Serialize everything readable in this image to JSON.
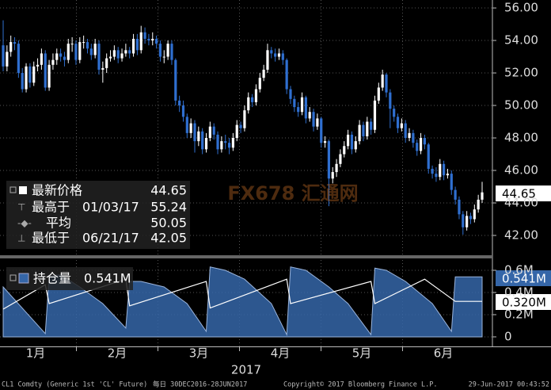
{
  "chart_data": {
    "type": "candlestick",
    "up_color": "#ffffff",
    "down_color": "#2f6fd0",
    "ylim": [
      40.78,
      56.49
    ],
    "yticks": [
      {
        "value": 56,
        "label": "56.00"
      },
      {
        "value": 54,
        "label": "54.00"
      },
      {
        "value": 52,
        "label": "52.00"
      },
      {
        "value": 50,
        "label": "50.00"
      },
      {
        "value": 48,
        "label": "48.00"
      },
      {
        "value": 46,
        "label": "46.00"
      },
      {
        "value": 44,
        "label": "44.00"
      },
      {
        "value": 42,
        "label": "42.00"
      }
    ],
    "grid": true,
    "months": [
      "1月",
      "2月",
      "3月",
      "4月",
      "5月",
      "6月"
    ],
    "year": "2017",
    "candles": [
      [
        53.7,
        55.24,
        52.1,
        52.4
      ],
      [
        52.4,
        53.7,
        52.1,
        53.3
      ],
      [
        53.3,
        54.3,
        53.0,
        53.9
      ],
      [
        53.9,
        54.2,
        53.4,
        53.8
      ],
      [
        53.8,
        54.0,
        51.7,
        52.0
      ],
      [
        52.0,
        52.3,
        50.8,
        51.0
      ],
      [
        51.0,
        52.6,
        50.8,
        52.4
      ],
      [
        52.4,
        52.6,
        51.1,
        51.4
      ],
      [
        51.4,
        52.7,
        51.2,
        52.4
      ],
      [
        52.4,
        52.9,
        52.1,
        52.5
      ],
      [
        52.5,
        53.5,
        52.2,
        53.2
      ],
      [
        53.2,
        53.4,
        50.9,
        51.1
      ],
      [
        51.1,
        52.8,
        50.9,
        52.5
      ],
      [
        52.5,
        53.2,
        52.2,
        52.8
      ],
      [
        52.8,
        53.5,
        52.5,
        53.2
      ],
      [
        53.2,
        53.5,
        52.7,
        53.0
      ],
      [
        53.0,
        53.3,
        52.4,
        52.8
      ],
      [
        52.8,
        54.1,
        52.6,
        53.8
      ],
      [
        53.8,
        54.2,
        53.3,
        53.8
      ],
      [
        53.8,
        54.0,
        52.5,
        52.8
      ],
      [
        52.8,
        54.2,
        52.6,
        53.9
      ],
      [
        53.9,
        54.3,
        53.5,
        53.9
      ],
      [
        53.9,
        54.1,
        53.2,
        53.5
      ],
      [
        53.5,
        53.8,
        52.8,
        53.1
      ],
      [
        53.1,
        54.1,
        52.9,
        53.8
      ],
      [
        53.8,
        54.0,
        51.9,
        52.2
      ],
      [
        52.2,
        52.7,
        51.4,
        52.3
      ],
      [
        52.3,
        53.2,
        52.0,
        52.9
      ],
      [
        52.9,
        53.4,
        52.7,
        53.0
      ],
      [
        53.0,
        53.7,
        52.8,
        53.4
      ],
      [
        53.4,
        53.6,
        52.6,
        52.9
      ],
      [
        52.9,
        53.5,
        52.7,
        53.2
      ],
      [
        53.2,
        53.8,
        53.0,
        53.4
      ],
      [
        53.4,
        53.6,
        52.9,
        53.2
      ],
      [
        53.2,
        54.4,
        53.0,
        54.1
      ],
      [
        54.1,
        54.4,
        53.1,
        53.4
      ],
      [
        53.4,
        54.9,
        53.2,
        54.5
      ],
      [
        54.5,
        54.8,
        53.8,
        54.1
      ],
      [
        54.1,
        54.4,
        53.7,
        54.0
      ],
      [
        54.0,
        54.5,
        53.7,
        54.1
      ],
      [
        54.1,
        54.3,
        53.5,
        53.8
      ],
      [
        53.8,
        54.0,
        52.7,
        53.0
      ],
      [
        53.0,
        53.4,
        52.6,
        53.0
      ],
      [
        53.0,
        54.0,
        52.8,
        53.8
      ],
      [
        53.8,
        54.0,
        52.5,
        52.8
      ],
      [
        52.8,
        52.9,
        50.0,
        50.3
      ],
      [
        50.3,
        50.6,
        49.6,
        50.0
      ],
      [
        50.0,
        50.3,
        49.0,
        49.3
      ],
      [
        49.3,
        49.5,
        48.0,
        48.3
      ],
      [
        48.3,
        49.2,
        48.0,
        48.9
      ],
      [
        48.9,
        49.1,
        47.1,
        47.8
      ],
      [
        47.8,
        48.7,
        47.5,
        48.4
      ],
      [
        48.4,
        48.6,
        47.0,
        47.3
      ],
      [
        47.3,
        48.3,
        47.1,
        48.0
      ],
      [
        48.0,
        49.0,
        47.8,
        48.7
      ],
      [
        48.7,
        48.9,
        47.9,
        48.2
      ],
      [
        48.2,
        48.4,
        47.0,
        47.3
      ],
      [
        47.3,
        48.1,
        47.1,
        47.8
      ],
      [
        47.8,
        48.2,
        47.3,
        47.7
      ],
      [
        47.7,
        48.0,
        47.0,
        47.4
      ],
      [
        47.4,
        48.3,
        47.2,
        48.0
      ],
      [
        48.0,
        49.1,
        47.8,
        48.8
      ],
      [
        48.8,
        49.0,
        48.3,
        48.6
      ],
      [
        48.6,
        50.0,
        48.4,
        49.7
      ],
      [
        49.7,
        50.8,
        49.5,
        50.5
      ],
      [
        50.5,
        50.7,
        49.9,
        50.2
      ],
      [
        50.2,
        51.3,
        50.0,
        51.0
      ],
      [
        51.0,
        52.0,
        50.8,
        51.7
      ],
      [
        51.7,
        52.5,
        51.5,
        52.2
      ],
      [
        52.2,
        53.8,
        52.0,
        53.4
      ],
      [
        53.4,
        53.6,
        52.9,
        53.2
      ],
      [
        53.2,
        53.5,
        52.7,
        53.0
      ],
      [
        53.0,
        53.5,
        52.8,
        53.2
      ],
      [
        53.2,
        53.4,
        52.5,
        52.8
      ],
      [
        52.8,
        52.9,
        50.7,
        51.0
      ],
      [
        51.0,
        51.2,
        50.1,
        50.4
      ],
      [
        50.4,
        50.6,
        49.6,
        49.9
      ],
      [
        49.9,
        50.2,
        49.3,
        49.6
      ],
      [
        49.6,
        50.8,
        49.4,
        50.5
      ],
      [
        50.5,
        50.6,
        48.9,
        49.2
      ],
      [
        49.2,
        49.9,
        49.0,
        49.6
      ],
      [
        49.6,
        49.8,
        48.4,
        48.7
      ],
      [
        48.7,
        49.5,
        48.5,
        49.2
      ],
      [
        49.2,
        49.3,
        47.4,
        47.7
      ],
      [
        47.7,
        48.1,
        47.4,
        47.8
      ],
      [
        47.8,
        47.9,
        43.8,
        45.5
      ],
      [
        45.5,
        46.2,
        45.2,
        45.9
      ],
      [
        45.9,
        46.7,
        45.6,
        46.4
      ],
      [
        46.4,
        47.3,
        46.2,
        47.0
      ],
      [
        47.0,
        47.8,
        46.8,
        47.5
      ],
      [
        47.5,
        48.5,
        47.3,
        48.2
      ],
      [
        48.2,
        48.4,
        47.0,
        47.3
      ],
      [
        47.3,
        48.1,
        47.1,
        47.8
      ],
      [
        47.8,
        49.1,
        47.6,
        48.8
      ],
      [
        48.8,
        49.0,
        47.8,
        48.1
      ],
      [
        48.1,
        49.3,
        47.9,
        49.0
      ],
      [
        49.0,
        49.2,
        48.2,
        48.5
      ],
      [
        48.5,
        50.6,
        48.3,
        50.3
      ],
      [
        50.3,
        51.4,
        50.1,
        51.1
      ],
      [
        51.1,
        52.2,
        50.9,
        51.9
      ],
      [
        51.9,
        52.0,
        50.5,
        50.8
      ],
      [
        50.8,
        51.0,
        48.6,
        49.8
      ],
      [
        49.8,
        50.0,
        49.0,
        49.3
      ],
      [
        49.3,
        49.5,
        48.3,
        48.6
      ],
      [
        48.6,
        49.2,
        48.4,
        48.9
      ],
      [
        48.9,
        49.1,
        47.7,
        48.0
      ],
      [
        48.0,
        48.6,
        47.8,
        48.3
      ],
      [
        48.3,
        48.5,
        47.4,
        47.7
      ],
      [
        47.7,
        47.9,
        46.9,
        47.2
      ],
      [
        47.2,
        48.3,
        47.0,
        48.0
      ],
      [
        48.0,
        48.2,
        47.3,
        47.6
      ],
      [
        47.6,
        47.7,
        45.8,
        46.1
      ],
      [
        46.1,
        46.3,
        45.5,
        45.8
      ],
      [
        45.8,
        46.2,
        45.3,
        45.6
      ],
      [
        45.6,
        46.7,
        45.4,
        46.4
      ],
      [
        46.4,
        46.6,
        45.4,
        45.7
      ],
      [
        45.7,
        46.1,
        45.5,
        45.8
      ],
      [
        45.8,
        46.0,
        44.5,
        44.8
      ],
      [
        44.8,
        45.0,
        43.9,
        44.2
      ],
      [
        44.2,
        44.4,
        43.0,
        43.3
      ],
      [
        43.3,
        43.5,
        42.05,
        42.5
      ],
      [
        42.5,
        43.5,
        42.3,
        43.2
      ],
      [
        43.2,
        43.4,
        42.7,
        43.0
      ],
      [
        43.0,
        43.9,
        42.8,
        43.6
      ],
      [
        43.6,
        44.5,
        43.4,
        44.2
      ],
      [
        44.2,
        45.3,
        44.0,
        44.65
      ]
    ],
    "last": 44.65,
    "legend": {
      "last_label": "最新价格",
      "last_value": 44.65,
      "high_label": "最高于",
      "high_date": "01/03/17",
      "high_value": 55.24,
      "avg_label": "平均",
      "avg_value": 50.05,
      "low_label": "最低于",
      "low_date": "06/21/17",
      "low_value": 42.05
    },
    "lower": {
      "type": "area",
      "ylim": [
        -0.086,
        0.7
      ],
      "yticks": [
        0,
        {
          "value": 0.2,
          "label": "0.2M"
        },
        {
          "value": 0.4,
          "label": "0.4M"
        },
        {
          "value": 0.6,
          "label": "0.6M"
        }
      ],
      "series": [
        {
          "name": "持仓量",
          "label": "0.541M",
          "color": "#3566a8",
          "x": [
            0,
            11,
            12,
            15,
            20,
            26,
            32,
            33,
            36,
            42,
            48,
            53,
            54,
            58,
            63,
            70,
            74,
            75,
            79,
            85,
            90,
            96,
            97,
            100,
            105,
            112,
            117,
            118,
            125
          ],
          "values": [
            0.45,
            0.03,
            0.55,
            0.56,
            0.45,
            0.3,
            0.08,
            0.5,
            0.5,
            0.45,
            0.3,
            0.05,
            0.63,
            0.6,
            0.52,
            0.3,
            0.02,
            0.63,
            0.6,
            0.45,
            0.3,
            0.02,
            0.62,
            0.6,
            0.5,
            0.3,
            0.05,
            0.541,
            0.541
          ]
        },
        {
          "label": "0.320M",
          "color": "#ffffff",
          "x": [
            0,
            11,
            12,
            32,
            33,
            53,
            54,
            74,
            75,
            96,
            97,
            110,
            118,
            125
          ],
          "values": [
            0.25,
            0.47,
            0.3,
            0.52,
            0.28,
            0.5,
            0.26,
            0.52,
            0.3,
            0.5,
            0.3,
            0.52,
            0.32,
            0.32
          ]
        }
      ]
    },
    "watermark": "FX678 汇通网",
    "footer": {
      "ticker": "CL1 Comdty (Generic 1st 'CL' Future)",
      "period": "每日 30DEC2016-28JUN2017",
      "copyright": "Copyright© 2017 Bloomberg Finance L.P.",
      "timestamp": "29-Jun-2017 00:43:52"
    }
  }
}
